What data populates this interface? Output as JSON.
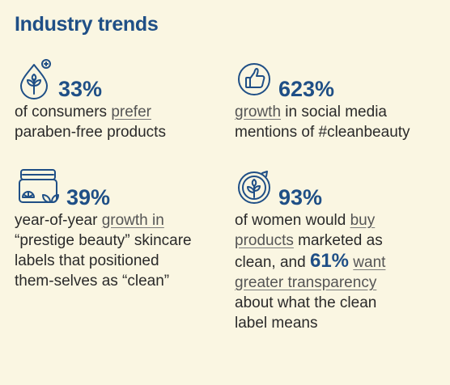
{
  "title": "Industry trends",
  "colors": {
    "background": "#faf6e2",
    "accent": "#1f4f86",
    "link": "#555555"
  },
  "stats": [
    {
      "icon": "leaf-drop-icon",
      "value": "33%",
      "lines": [
        {
          "pre": "of consumers ",
          "link": "prefer",
          "post": ""
        },
        {
          "pre": "paraben-free products",
          "link": "",
          "post": ""
        }
      ]
    },
    {
      "icon": "thumbs-up-icon",
      "value": "623%",
      "lines": [
        {
          "pre": "",
          "link": "growth",
          "post": " in social media"
        },
        {
          "pre": "mentions of #cleanbeauty",
          "link": "",
          "post": ""
        }
      ]
    },
    {
      "icon": "skincare-jar-icon",
      "value": "39%",
      "lines": [
        {
          "pre": "year-of-year ",
          "link": "growth in",
          "post": ""
        },
        {
          "pre": "“prestige beauty” skincare",
          "link": "",
          "post": ""
        },
        {
          "pre": "labels that positioned",
          "link": "",
          "post": ""
        },
        {
          "pre": "them-selves as “clean”",
          "link": "",
          "post": ""
        }
      ]
    },
    {
      "icon": "leaf-badge-icon",
      "value": "93%",
      "lines": [
        {
          "pre": "of women would ",
          "link": "buy",
          "post": ""
        },
        {
          "pre": "",
          "link": "products",
          "post": " marketed as"
        },
        {
          "pre": "clean, and ",
          "highlight": "61%",
          "link": "want",
          "post": ""
        },
        {
          "pre": "",
          "link": "greater transparency",
          "post": ""
        },
        {
          "pre": "about what the clean",
          "link": "",
          "post": ""
        },
        {
          "pre": "label means",
          "link": "",
          "post": ""
        }
      ]
    }
  ]
}
